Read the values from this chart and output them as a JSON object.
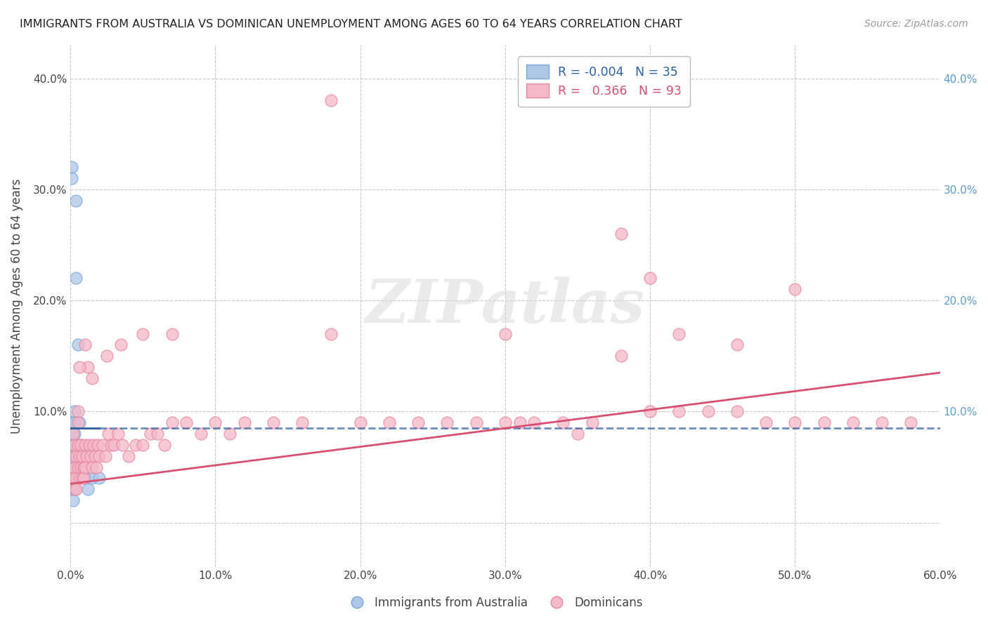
{
  "title": "IMMIGRANTS FROM AUSTRALIA VS DOMINICAN UNEMPLOYMENT AMONG AGES 60 TO 64 YEARS CORRELATION CHART",
  "source": "Source: ZipAtlas.com",
  "ylabel": "Unemployment Among Ages 60 to 64 years",
  "xlim": [
    0.0,
    0.6
  ],
  "ylim": [
    -0.04,
    0.43
  ],
  "xticks": [
    0.0,
    0.1,
    0.2,
    0.3,
    0.4,
    0.5,
    0.6
  ],
  "xticklabels": [
    "0.0%",
    "10.0%",
    "20.0%",
    "30.0%",
    "40.0%",
    "50.0%",
    "60.0%"
  ],
  "yticks": [
    0.0,
    0.1,
    0.2,
    0.3,
    0.4
  ],
  "yticklabels_left": [
    "",
    "10.0%",
    "20.0%",
    "30.0%",
    "40.0%"
  ],
  "yticklabels_right": [
    "",
    "10.0%",
    "20.0%",
    "30.0%",
    "40.0%"
  ],
  "legend_r_blue": "-0.004",
  "legend_n_blue": "35",
  "legend_r_pink": "0.366",
  "legend_n_pink": "93",
  "blue_color": "#aec6e8",
  "blue_edge": "#7aaad4",
  "pink_color": "#f4b8c8",
  "pink_edge": "#e888a0",
  "blue_line_color": "#2e5fa3",
  "pink_line_color": "#d94f72",
  "grid_color": "#c8c8c8",
  "watermark_color": "#d8d8d8",
  "title_color": "#222222",
  "source_color": "#999999",
  "tick_color": "#444444",
  "right_tick_color": "#5b9bd5",
  "blue_x": [
    0.001,
    0.001,
    0.001,
    0.001,
    0.002,
    0.002,
    0.002,
    0.002,
    0.002,
    0.002,
    0.002,
    0.002,
    0.003,
    0.003,
    0.003,
    0.003,
    0.003,
    0.003,
    0.003,
    0.003,
    0.004,
    0.004,
    0.004,
    0.004,
    0.004,
    0.005,
    0.005,
    0.006,
    0.006,
    0.007,
    0.008,
    0.01,
    0.012,
    0.015,
    0.02
  ],
  "blue_y": [
    0.32,
    0.31,
    0.05,
    0.04,
    0.09,
    0.08,
    0.07,
    0.06,
    0.05,
    0.04,
    0.03,
    0.02,
    0.1,
    0.09,
    0.08,
    0.07,
    0.06,
    0.05,
    0.04,
    0.03,
    0.29,
    0.22,
    0.06,
    0.05,
    0.04,
    0.16,
    0.05,
    0.09,
    0.04,
    0.07,
    0.05,
    0.04,
    0.03,
    0.04,
    0.04
  ],
  "blue_trend_y_start": 0.085,
  "blue_trend_y_end": 0.085,
  "blue_trend_x_solid_end": 0.02,
  "pink_trend_y_start": 0.035,
  "pink_trend_y_end": 0.135,
  "pink_x": [
    0.001,
    0.001,
    0.002,
    0.002,
    0.002,
    0.003,
    0.003,
    0.003,
    0.004,
    0.004,
    0.004,
    0.005,
    0.005,
    0.006,
    0.006,
    0.007,
    0.007,
    0.008,
    0.008,
    0.009,
    0.009,
    0.01,
    0.01,
    0.011,
    0.012,
    0.013,
    0.014,
    0.015,
    0.016,
    0.017,
    0.018,
    0.019,
    0.02,
    0.022,
    0.024,
    0.026,
    0.028,
    0.03,
    0.033,
    0.036,
    0.04,
    0.045,
    0.05,
    0.055,
    0.06,
    0.065,
    0.07,
    0.08,
    0.09,
    0.1,
    0.11,
    0.12,
    0.14,
    0.16,
    0.18,
    0.2,
    0.22,
    0.24,
    0.26,
    0.28,
    0.3,
    0.32,
    0.34,
    0.36,
    0.38,
    0.4,
    0.42,
    0.44,
    0.46,
    0.48,
    0.5,
    0.52,
    0.54,
    0.56,
    0.58,
    0.005,
    0.005,
    0.006,
    0.01,
    0.015,
    0.025,
    0.035,
    0.05,
    0.07,
    0.18,
    0.3,
    0.4,
    0.5,
    0.42,
    0.46,
    0.38,
    0.35,
    0.31
  ],
  "pink_y": [
    0.05,
    0.04,
    0.08,
    0.06,
    0.04,
    0.07,
    0.05,
    0.03,
    0.06,
    0.04,
    0.03,
    0.07,
    0.05,
    0.06,
    0.04,
    0.07,
    0.05,
    0.06,
    0.04,
    0.05,
    0.04,
    0.07,
    0.05,
    0.06,
    0.14,
    0.07,
    0.06,
    0.05,
    0.07,
    0.06,
    0.05,
    0.07,
    0.06,
    0.07,
    0.06,
    0.08,
    0.07,
    0.07,
    0.08,
    0.07,
    0.06,
    0.07,
    0.07,
    0.08,
    0.08,
    0.07,
    0.09,
    0.09,
    0.08,
    0.09,
    0.08,
    0.09,
    0.09,
    0.09,
    0.17,
    0.09,
    0.09,
    0.09,
    0.09,
    0.09,
    0.09,
    0.09,
    0.09,
    0.09,
    0.26,
    0.1,
    0.1,
    0.1,
    0.1,
    0.09,
    0.09,
    0.09,
    0.09,
    0.09,
    0.09,
    0.1,
    0.09,
    0.14,
    0.16,
    0.13,
    0.15,
    0.16,
    0.17,
    0.17,
    0.38,
    0.17,
    0.22,
    0.21,
    0.17,
    0.16,
    0.15,
    0.08,
    0.09
  ]
}
